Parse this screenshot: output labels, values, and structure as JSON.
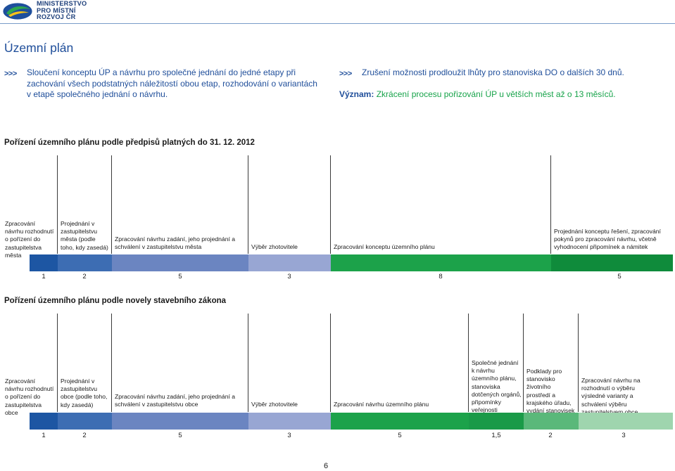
{
  "header": {
    "logo_line1": "MINISTERSTVO",
    "logo_line2": "PRO MÍSTNÍ",
    "logo_line3": "ROZVOJ ČR",
    "logo_icon": "ministry-logo-icon"
  },
  "page_title": "Územní plán",
  "summary": {
    "arrows": ">>>",
    "left_text": "Sloučení konceptu ÚP a návrhu pro společné jednání do jedné etapy při zachování všech podstatných náležitostí obou etap, rozhodování o variantách v etapě společného jednání o návrhu.",
    "right_line1": "Zrušení možnosti prodloužit lhůty pro stanoviska DO o dalších 30 dnů.",
    "right_label": "Význam:",
    "right_value": "Zkrácení procesu pořizování ÚP u větších měst až o 13 měsíců."
  },
  "timeline_old": {
    "title": "Pořízení územního plánu podle předpisů platných do 31. 12. 2012",
    "phases": [
      {
        "label": "Zpracování návrhu rozhodnutí o pořízení do zastupitelstva města",
        "duration": "1",
        "color": "#1d56a3"
      },
      {
        "label": "Projednání v zastupitelstvu města (podle toho, kdy zasedá)",
        "duration": "2",
        "color": "#3d6db3"
      },
      {
        "label": "Zpracování návrhu zadání, jeho projednání a schválení v zastupitelstvu města",
        "duration": "5",
        "color": "#6b85c1"
      },
      {
        "label": "Výběr zhotovitele",
        "duration": "3",
        "color": "#98a6d3"
      },
      {
        "label": "Zpracování konceptu územního plánu",
        "duration": "8",
        "color": "#1ca24a"
      },
      {
        "label": "Projednání konceptu řešení, zpracování pokynů pro zpracování návrhu, včetně vyhodnocení připomínek a námitek",
        "duration": "5",
        "color": "#0f8b3b"
      }
    ]
  },
  "timeline_new": {
    "title": "Pořízení územního plánu podle novely stavebního zákona",
    "phases": [
      {
        "label": "Zpracování návrhu rozhodnutí o pořízení do zastupitelstva obce",
        "duration": "1",
        "color": "#1d56a3"
      },
      {
        "label": "Projednání v zastupitelstvu obce (podle toho, kdy zasedá)",
        "duration": "2",
        "color": "#3d6db3"
      },
      {
        "label": "Zpracování návrhu zadání, jeho projednání a schválení v zastupitelstvu obce",
        "duration": "5",
        "color": "#6b85c1"
      },
      {
        "label": "Výběr zhotovitele",
        "duration": "3",
        "color": "#98a6d3"
      },
      {
        "label": "Zpracování návrhu územního plánu",
        "duration": "5",
        "color": "#1ca24a"
      },
      {
        "label": "Společné jednání k návrhu územního plánu, stanoviska dotčených orgánů, připomínky veřejnosti",
        "duration": "1,5",
        "color": "#1a9a48"
      },
      {
        "label": "Podklady pro stanovisko životního prostředí a krajského úřadu, vydání stanovisek",
        "duration": "2",
        "color": "#5ab87a"
      },
      {
        "label": "Zpracování návrhu na rozhodnutí o výběru výsledné varianty a schválení výběru zastupitelstvem obce",
        "duration": "3",
        "color": "#9fd5ae"
      }
    ]
  },
  "page_number": "6"
}
